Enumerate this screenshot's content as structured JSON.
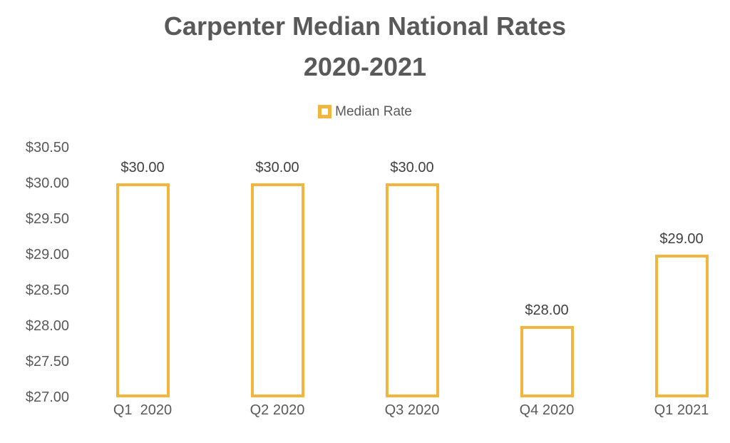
{
  "chart_data": {
    "type": "bar",
    "title": "Carpenter Median National Rates",
    "subtitle": "2020-2021",
    "legend": {
      "position": "top",
      "items": [
        {
          "label": "Median Rate",
          "swatch_border": "#F2B53D",
          "swatch_fill": "#FFFFFF"
        }
      ]
    },
    "categories": [
      "Q1  2020",
      "Q2 2020",
      "Q3 2020",
      "Q4 2020",
      "Q1 2021"
    ],
    "series": [
      {
        "name": "Median Rate",
        "values": [
          30.0,
          30.0,
          30.0,
          28.0,
          29.0
        ],
        "data_labels": [
          "$30.00",
          "$30.00",
          "$30.00",
          "$28.00",
          "$29.00"
        ]
      }
    ],
    "xlabel": "",
    "ylabel": "",
    "ylim": [
      27.0,
      30.5
    ],
    "ytick_step": 0.5,
    "yticks": [
      {
        "value": 30.5,
        "label": "$30.50"
      },
      {
        "value": 30.0,
        "label": "$30.00"
      },
      {
        "value": 29.5,
        "label": "$29.50"
      },
      {
        "value": 29.0,
        "label": "$29.00"
      },
      {
        "value": 28.5,
        "label": "$28.50"
      },
      {
        "value": 28.0,
        "label": "$28.00"
      },
      {
        "value": 27.5,
        "label": "$27.50"
      },
      {
        "value": 27.0,
        "label": "$27.00"
      }
    ],
    "grid": false,
    "axis_lines": false,
    "bar_style": {
      "border_color": "#F2B53D",
      "fill_color": "#FFFFFF",
      "border_width_px": 4
    },
    "text_colors": {
      "title": "#595959",
      "axis": "#595959",
      "data_label": "#404040"
    }
  }
}
